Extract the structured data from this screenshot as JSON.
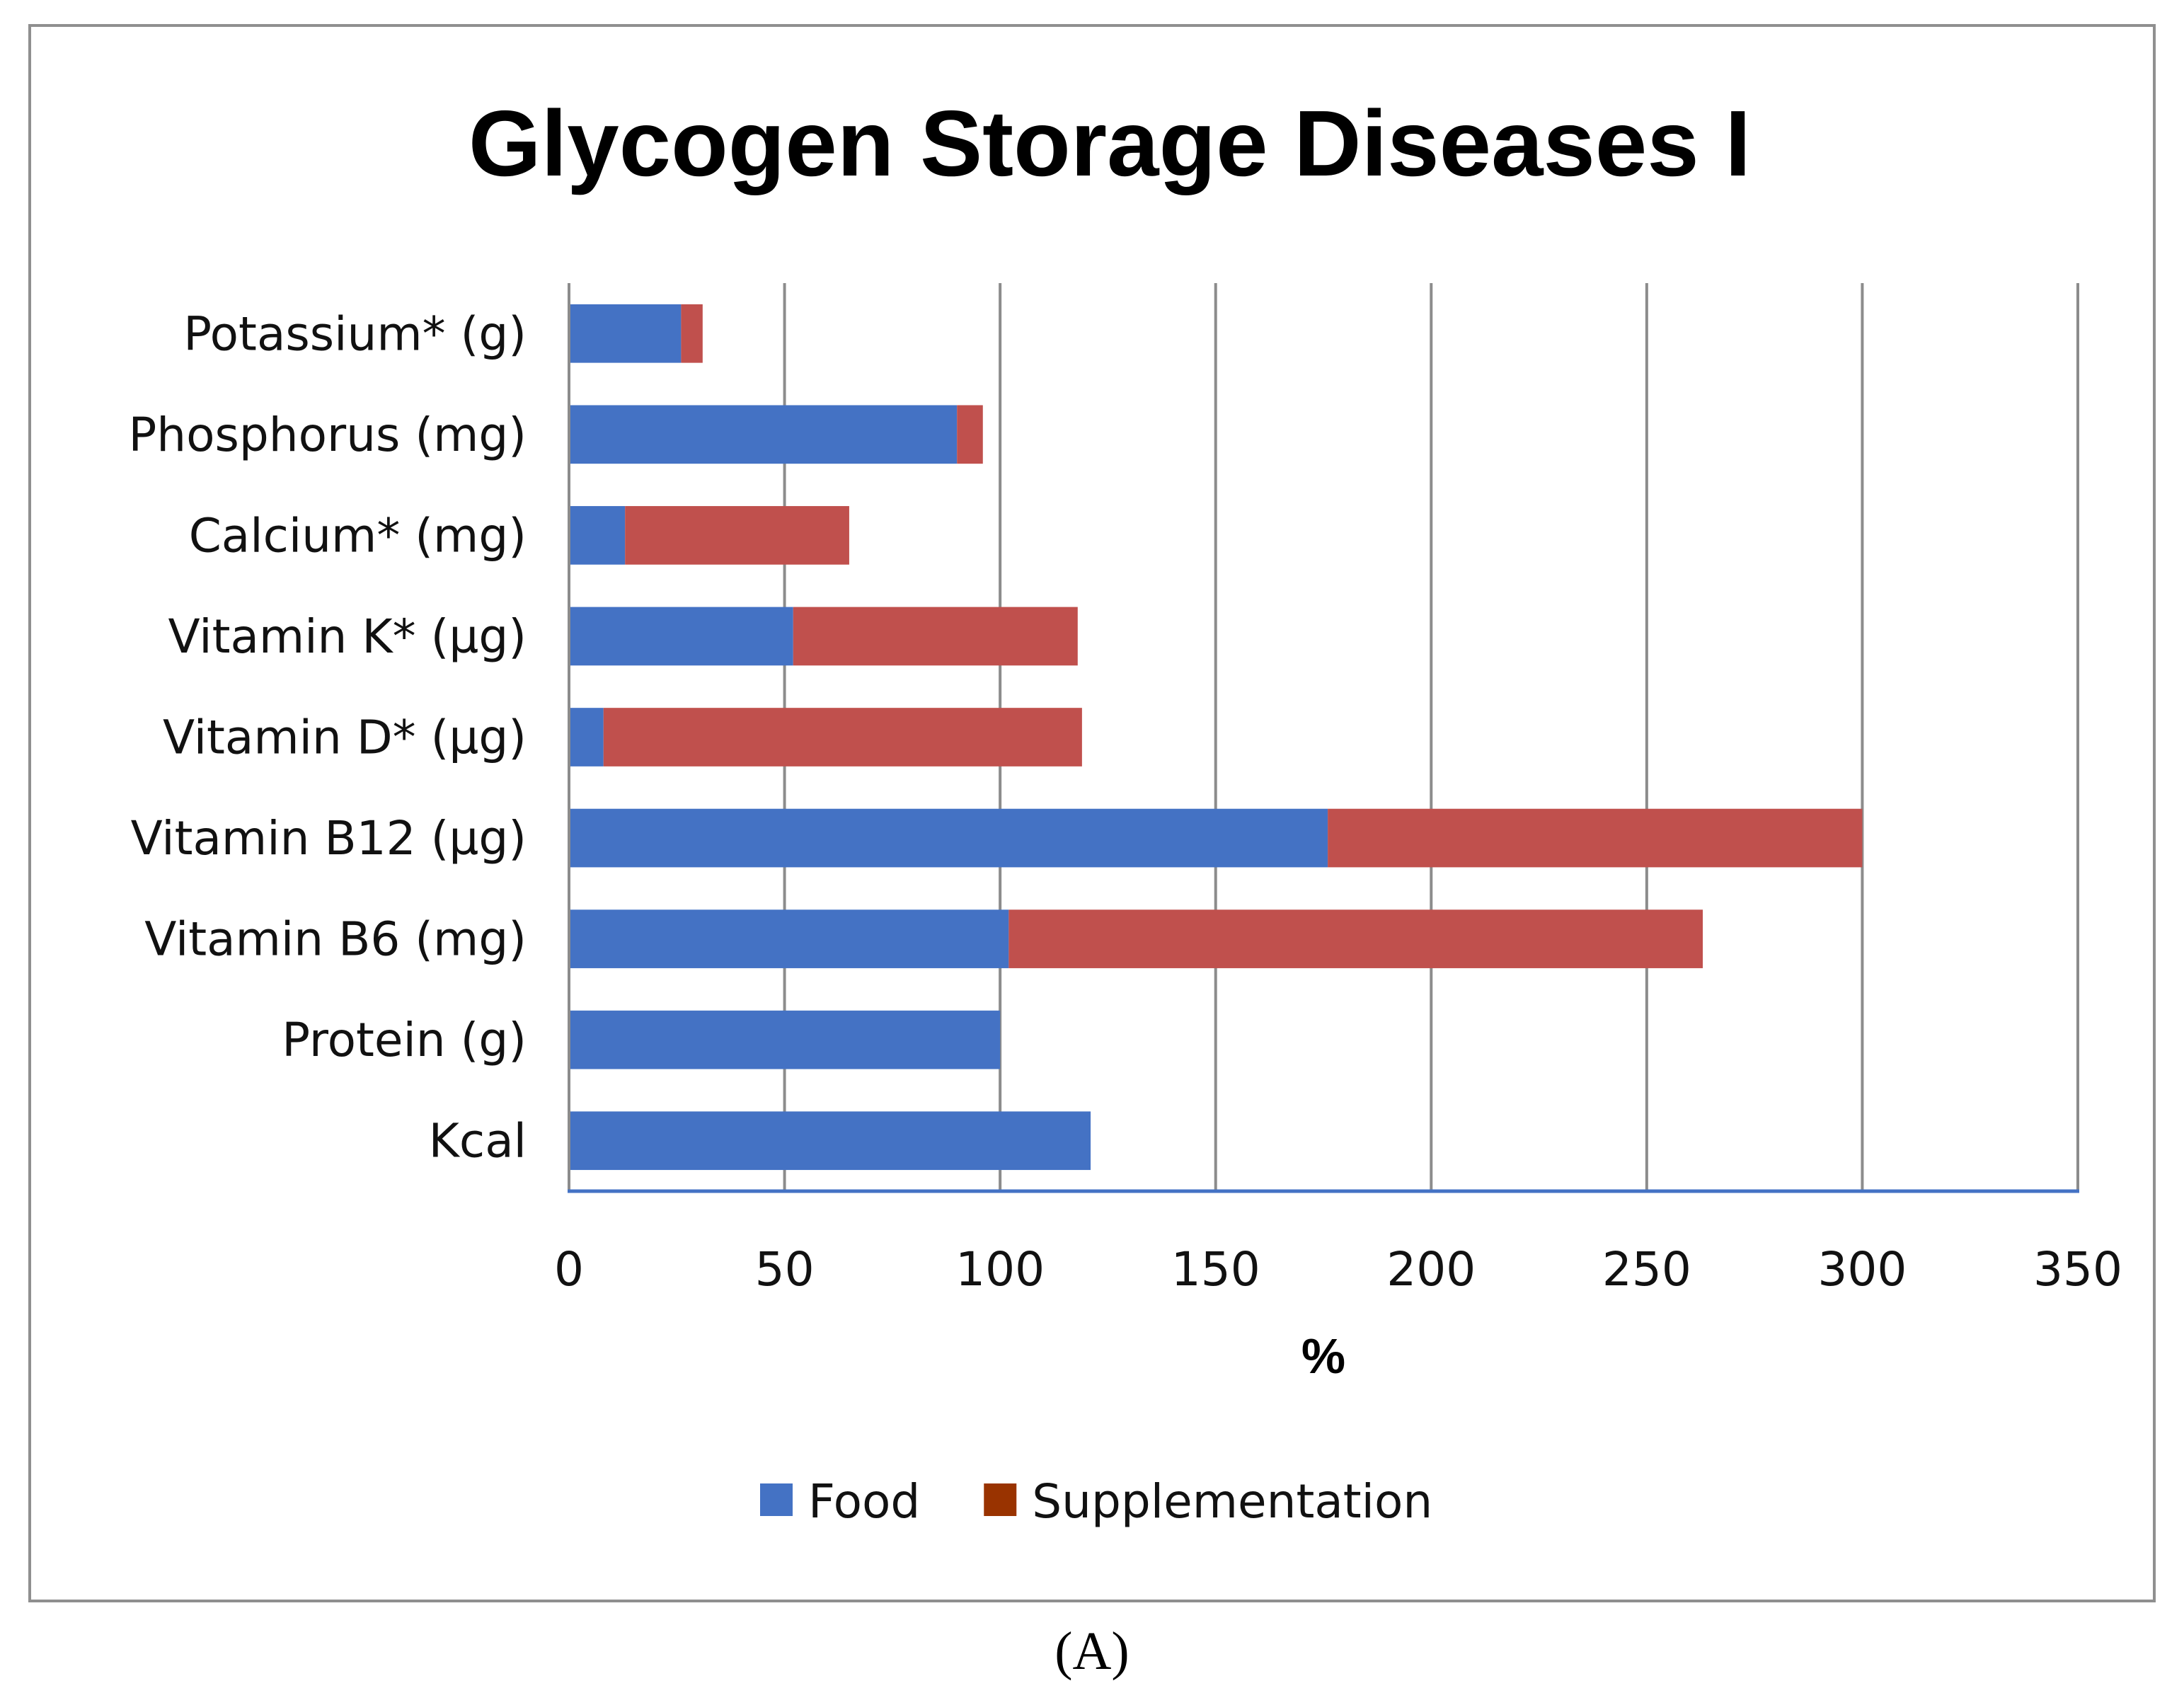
{
  "chart_data": {
    "type": "bar",
    "orientation": "horizontal",
    "stacked": true,
    "title": "Glycogen Storage Diseases I",
    "xlabel": "%",
    "ylabel": "",
    "xlim": [
      0,
      350
    ],
    "xticks": [
      0,
      50,
      100,
      150,
      200,
      250,
      300,
      350
    ],
    "grid": true,
    "legend_position": "bottom",
    "categories": [
      "Potassium* (g)",
      "Phosphorus (mg)",
      "Calcium* (mg)",
      "Vitamin K* (µg)",
      "Vitamin D* (µg)",
      "Vitamin B12 (µg)",
      "Vitamin B6 (mg)",
      "Protein (g)",
      "Kcal"
    ],
    "series": [
      {
        "name": "Food",
        "color": "#4472C4",
        "values": [
          26,
          90,
          13,
          52,
          8,
          176,
          102,
          100,
          121
        ]
      },
      {
        "name": "Supplementation",
        "color": "#C0504D",
        "legend_color": "#993300",
        "values": [
          5,
          6,
          52,
          66,
          111,
          124,
          161,
          0,
          0
        ]
      }
    ]
  },
  "panel_label": "(A)"
}
